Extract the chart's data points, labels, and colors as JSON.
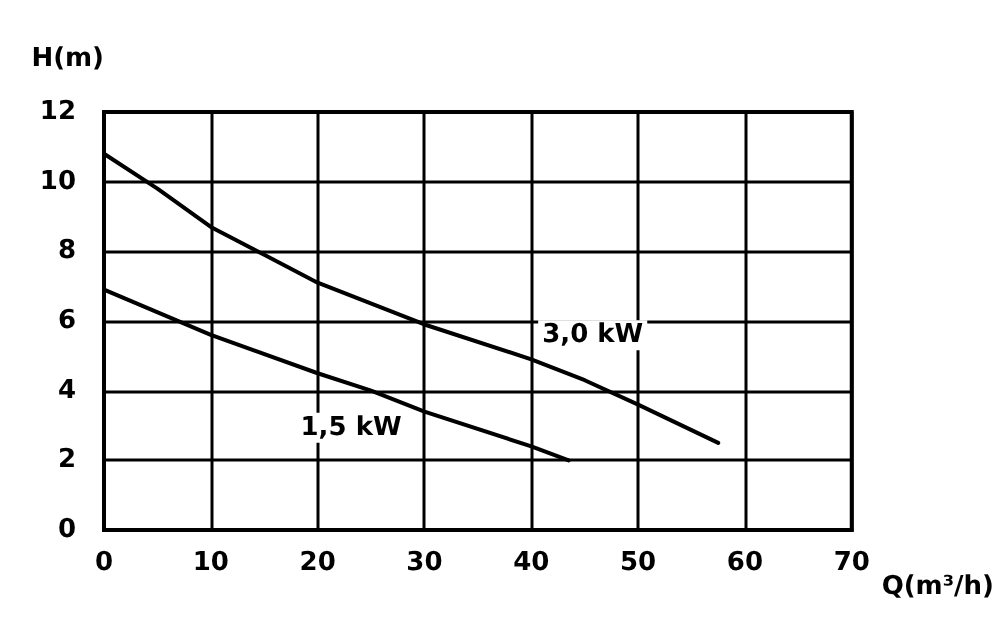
{
  "chart_data": {
    "type": "line",
    "xlabel": "Q(m³/h)",
    "ylabel": "H(m)",
    "xlim": [
      0,
      70
    ],
    "xticks": [
      0,
      10,
      20,
      30,
      40,
      50,
      60,
      70
    ],
    "ylim": [
      0,
      12
    ],
    "yticks": [
      0,
      2,
      4,
      6,
      8,
      10,
      12
    ],
    "grid": true,
    "marker": "none",
    "line_style": "solid",
    "series": [
      {
        "name": "3,0 kW",
        "color": "#000000",
        "x": [
          0,
          5,
          10,
          15,
          20,
          30,
          40,
          45,
          50,
          57.5
        ],
        "values": [
          10.8,
          9.8,
          8.7,
          7.9,
          7.1,
          5.9,
          4.9,
          4.3,
          3.6,
          2.5
        ]
      },
      {
        "name": "1,5 kW",
        "color": "#000000",
        "x": [
          0,
          10,
          20,
          25,
          30,
          40,
          43.5
        ],
        "values": [
          6.9,
          5.6,
          4.5,
          4.0,
          3.4,
          2.4,
          2.0
        ]
      }
    ]
  }
}
